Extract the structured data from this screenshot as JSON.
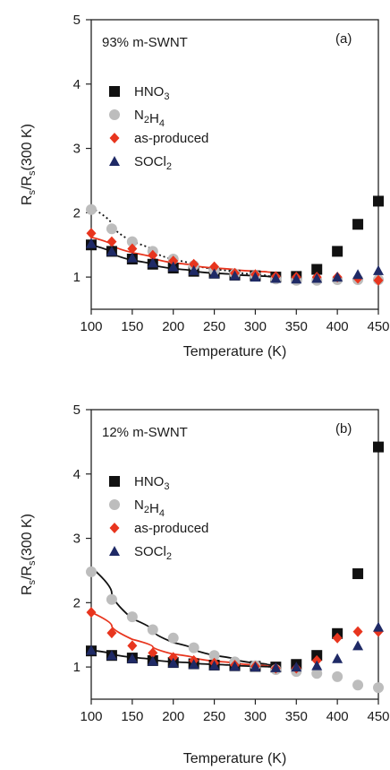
{
  "chart_data": [
    {
      "type": "scatter",
      "panel_label": "(a)",
      "annotation": "93% m-SWNT",
      "xlabel": "Temperature (K)",
      "ylabel": "Rs/Rs(300 K)",
      "xlim": [
        100,
        450
      ],
      "ylim": [
        0.5,
        5
      ],
      "xticks": [
        100,
        150,
        200,
        250,
        300,
        350,
        400,
        450
      ],
      "yticks": [
        1,
        2,
        3,
        4,
        5
      ],
      "legend_placement": "upper-left",
      "series": [
        {
          "name": "HNO3",
          "marker": "square",
          "color": "#111111",
          "x": [
            100,
            125,
            150,
            175,
            200,
            225,
            250,
            275,
            300,
            325,
            350,
            375,
            400,
            425,
            450
          ],
          "y": [
            1.5,
            1.4,
            1.28,
            1.2,
            1.14,
            1.09,
            1.06,
            1.03,
            1.02,
            1.0,
            1.01,
            1.12,
            1.4,
            1.82,
            2.18
          ]
        },
        {
          "name": "N2H4",
          "marker": "circle",
          "color": "#bdbdbd",
          "x": [
            100,
            125,
            150,
            175,
            200,
            225,
            250,
            275,
            300,
            325,
            350,
            375,
            400,
            425,
            450
          ],
          "y": [
            2.05,
            1.75,
            1.55,
            1.4,
            1.28,
            1.18,
            1.1,
            1.05,
            1.02,
            0.97,
            0.95,
            0.95,
            0.96,
            0.96,
            0.96
          ]
        },
        {
          "name": "as-produced",
          "marker": "diamond",
          "color": "#e8351e",
          "x": [
            100,
            125,
            150,
            175,
            200,
            225,
            250,
            275,
            300,
            325,
            350,
            375,
            400,
            425,
            450
          ],
          "y": [
            1.68,
            1.55,
            1.44,
            1.34,
            1.25,
            1.2,
            1.16,
            1.06,
            1.04,
            1.01,
            1.0,
            1.0,
            1.0,
            0.98,
            0.95
          ]
        },
        {
          "name": "SOCl2",
          "marker": "triangle",
          "color": "#1f2a66",
          "x": [
            100,
            125,
            150,
            175,
            200,
            225,
            250,
            275,
            300,
            325,
            350,
            375,
            400,
            425,
            450
          ],
          "y": [
            1.52,
            1.4,
            1.3,
            1.22,
            1.16,
            1.1,
            1.05,
            1.02,
            1.0,
            0.98,
            0.97,
            0.98,
            1.0,
            1.04,
            1.1
          ]
        }
      ],
      "fits": [
        {
          "color": "#111111",
          "dash": "solid",
          "x": [
            100,
            150,
            200,
            250,
            300,
            330
          ],
          "y": [
            1.5,
            1.26,
            1.13,
            1.06,
            1.02,
            1.0
          ]
        },
        {
          "color": "#111111",
          "dash": "dotted",
          "x": [
            100,
            150,
            200,
            250,
            300,
            330
          ],
          "y": [
            2.08,
            1.55,
            1.27,
            1.12,
            1.04,
            1.0
          ]
        },
        {
          "color": "#e8351e",
          "dash": "solid",
          "x": [
            100,
            150,
            200,
            250,
            300,
            330
          ],
          "y": [
            1.62,
            1.38,
            1.22,
            1.14,
            1.09,
            1.07
          ]
        }
      ]
    },
    {
      "type": "scatter",
      "panel_label": "(b)",
      "annotation": "12% m-SWNT",
      "xlabel": "Temperature (K)",
      "ylabel": "Rs/Rs(300 K)",
      "xlim": [
        100,
        450
      ],
      "ylim": [
        0.5,
        5
      ],
      "xticks": [
        100,
        150,
        200,
        250,
        300,
        350,
        400,
        450
      ],
      "yticks": [
        1,
        2,
        3,
        4,
        5
      ],
      "legend_placement": "upper-left",
      "series": [
        {
          "name": "HNO3",
          "marker": "square",
          "color": "#111111",
          "x": [
            100,
            125,
            150,
            175,
            200,
            225,
            250,
            275,
            300,
            325,
            350,
            375,
            400,
            425,
            450
          ],
          "y": [
            1.25,
            1.18,
            1.14,
            1.1,
            1.07,
            1.05,
            1.03,
            1.02,
            1.01,
            1.0,
            1.04,
            1.18,
            1.52,
            2.45,
            4.42
          ]
        },
        {
          "name": "N2H4",
          "marker": "circle",
          "color": "#bdbdbd",
          "x": [
            100,
            125,
            150,
            175,
            200,
            225,
            250,
            275,
            300,
            325,
            350,
            375,
            400,
            425,
            450
          ],
          "y": [
            2.48,
            2.05,
            1.78,
            1.58,
            1.45,
            1.3,
            1.18,
            1.08,
            1.02,
            0.96,
            0.93,
            0.9,
            0.85,
            0.72,
            0.68
          ]
        },
        {
          "name": "as-produced",
          "marker": "diamond",
          "color": "#e8351e",
          "x": [
            100,
            125,
            150,
            175,
            200,
            225,
            250,
            275,
            300,
            325,
            350,
            375,
            400,
            425,
            450
          ],
          "y": [
            1.85,
            1.53,
            1.33,
            1.22,
            1.15,
            1.1,
            1.06,
            1.03,
            1.01,
            0.98,
            0.98,
            1.1,
            1.45,
            1.55,
            1.55
          ]
        },
        {
          "name": "SOCl2",
          "marker": "triangle",
          "color": "#1f2a66",
          "x": [
            100,
            125,
            150,
            175,
            200,
            225,
            250,
            275,
            300,
            325,
            350,
            375,
            400,
            425,
            450
          ],
          "y": [
            1.26,
            1.18,
            1.13,
            1.09,
            1.06,
            1.04,
            1.02,
            1.01,
            1.0,
            0.99,
            1.0,
            1.02,
            1.13,
            1.33,
            1.62
          ]
        }
      ],
      "fits": [
        {
          "color": "#111111",
          "dash": "solid",
          "x": [
            100,
            150,
            200,
            250,
            300,
            330
          ],
          "y": [
            2.55,
            1.75,
            1.38,
            1.18,
            1.06,
            1.02
          ]
        },
        {
          "color": "#e8351e",
          "dash": "solid",
          "x": [
            100,
            150,
            200,
            250,
            300,
            330
          ],
          "y": [
            1.85,
            1.43,
            1.2,
            1.09,
            1.03,
            1.0
          ]
        },
        {
          "color": "#111111",
          "dash": "solid",
          "x": [
            100,
            150,
            200,
            250,
            300,
            330
          ],
          "y": [
            1.26,
            1.15,
            1.08,
            1.04,
            1.01,
            1.0
          ]
        }
      ]
    }
  ]
}
